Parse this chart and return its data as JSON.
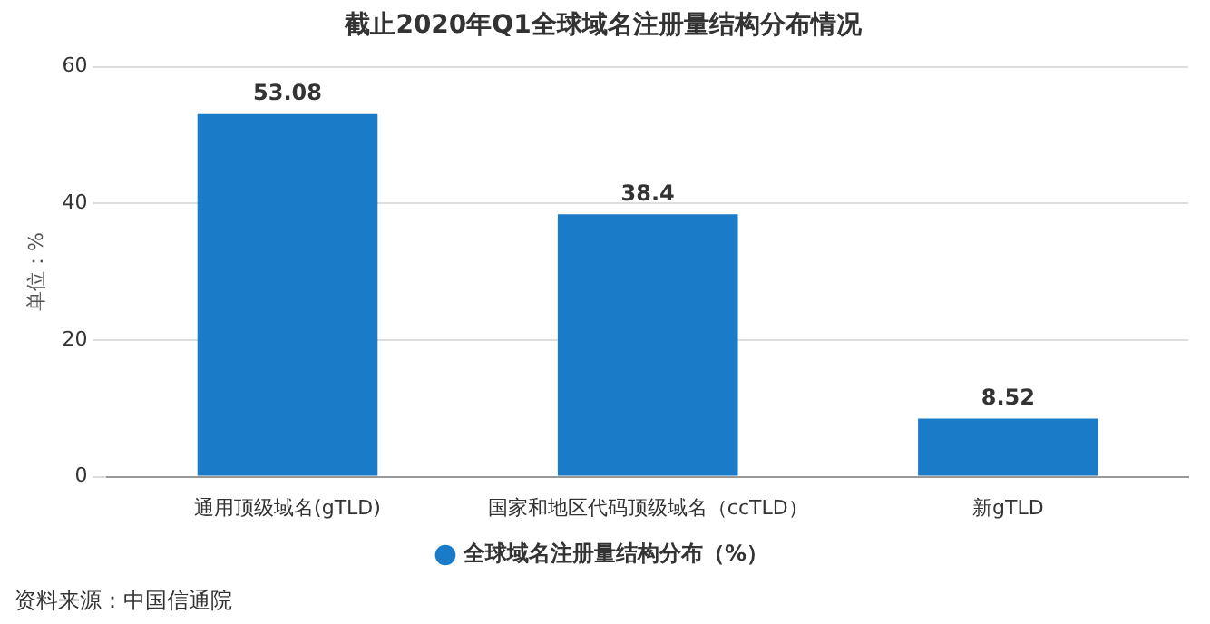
{
  "chart_data": {
    "type": "bar",
    "title": "截止2020年Q1全球域名注册量结构分布情况",
    "ylabel": "单位：%",
    "categories": [
      "通用顶级域名(gTLD)",
      "国家和地区代码顶级域名（ccTLD）",
      "新gTLD"
    ],
    "series": [
      {
        "name": "全球域名注册量结构分布（%）",
        "color": "#1a7bc9",
        "values": [
          53.08,
          38.4,
          8.52
        ]
      }
    ],
    "ylim": [
      0,
      60
    ],
    "yticks": [
      0,
      20,
      40,
      60
    ],
    "grid": "y",
    "legend": "bottom",
    "data_labels": true,
    "annotations": [
      "资料来源：中国信通院"
    ]
  }
}
